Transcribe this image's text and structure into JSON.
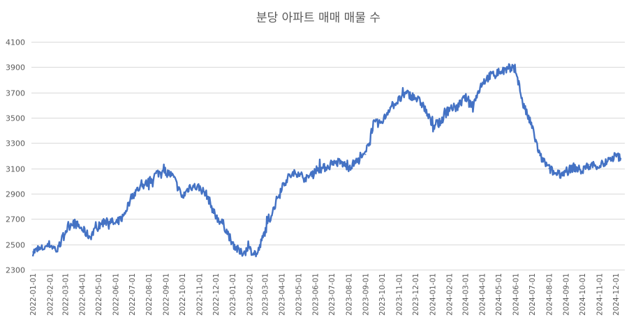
{
  "chart_data": {
    "type": "line",
    "title": "분당 아파트 매매 매물 수",
    "xlabel": "",
    "ylabel": "",
    "ylim": [
      2300,
      4100
    ],
    "y_ticks": [
      2300,
      2500,
      2700,
      2900,
      3100,
      3300,
      3500,
      3700,
      3900,
      4100
    ],
    "x_ticks": [
      "2022-01-01",
      "2022-02-01",
      "2022-03-01",
      "2022-04-01",
      "2022-05-01",
      "2022-06-01",
      "2022-07-01",
      "2022-08-01",
      "2022-09-01",
      "2022-10-01",
      "2022-11-01",
      "2022-12-01",
      "2023-01-01",
      "2023-02-01",
      "2023-03-01",
      "2023-04-01",
      "2023-05-01",
      "2023-06-01",
      "2023-07-01",
      "2023-08-01",
      "2023-09-01",
      "2023-10-01",
      "2023-11-01",
      "2023-12-01",
      "2024-01-01",
      "2024-02-01",
      "2024-03-01",
      "2024-04-01",
      "2024-05-01",
      "2024-06-01",
      "2024-07-01",
      "2024-08-01",
      "2024-09-01",
      "2024-10-01",
      "2024-11-01",
      "2024-12-01"
    ],
    "grid": true,
    "legend": "none",
    "line_color": "#4472c4",
    "series": [
      {
        "x": [
          "2022-01-01",
          "2022-01-15",
          "2022-02-01",
          "2022-02-15",
          "2022-03-01",
          "2022-03-15",
          "2022-04-01",
          "2022-04-15",
          "2022-05-01",
          "2022-05-15",
          "2022-06-01",
          "2022-06-15",
          "2022-07-01",
          "2022-07-15",
          "2022-08-01",
          "2022-08-15",
          "2022-09-01",
          "2022-09-15",
          "2022-10-01",
          "2022-10-15",
          "2022-11-01",
          "2022-11-15",
          "2022-12-01",
          "2022-12-15",
          "2023-01-01",
          "2023-01-15",
          "2023-02-01",
          "2023-02-15",
          "2023-03-01",
          "2023-03-15",
          "2023-04-01",
          "2023-04-15",
          "2023-05-01",
          "2023-05-15",
          "2023-06-01",
          "2023-06-15",
          "2023-07-01",
          "2023-07-15",
          "2023-08-01",
          "2023-08-15",
          "2023-09-01",
          "2023-09-15",
          "2023-10-01",
          "2023-10-15",
          "2023-11-01",
          "2023-11-15",
          "2023-12-01",
          "2023-12-15",
          "2024-01-01",
          "2024-01-15",
          "2024-02-01",
          "2024-02-15",
          "2024-03-01",
          "2024-03-15",
          "2024-04-01",
          "2024-04-15",
          "2024-05-01",
          "2024-05-15",
          "2024-06-01",
          "2024-06-15",
          "2024-07-01",
          "2024-07-15",
          "2024-08-01",
          "2024-08-15",
          "2024-09-01",
          "2024-09-15",
          "2024-10-01",
          "2024-10-15",
          "2024-11-01",
          "2024-11-15",
          "2024-12-01",
          "2024-12-10"
        ],
        "values": [
          2440,
          2460,
          2500,
          2450,
          2600,
          2680,
          2620,
          2560,
          2640,
          2700,
          2660,
          2720,
          2880,
          2950,
          2990,
          3060,
          3080,
          3030,
          2870,
          2960,
          2950,
          2890,
          2720,
          2660,
          2510,
          2430,
          2460,
          2420,
          2600,
          2760,
          2960,
          3040,
          3070,
          3010,
          3090,
          3100,
          3130,
          3150,
          3110,
          3150,
          3210,
          3450,
          3460,
          3580,
          3640,
          3690,
          3660,
          3600,
          3440,
          3460,
          3580,
          3580,
          3660,
          3600,
          3780,
          3830,
          3860,
          3880,
          3890,
          3600,
          3430,
          3200,
          3100,
          3050,
          3070,
          3110,
          3080,
          3130,
          3120,
          3150,
          3200,
          3180
        ]
      }
    ]
  }
}
